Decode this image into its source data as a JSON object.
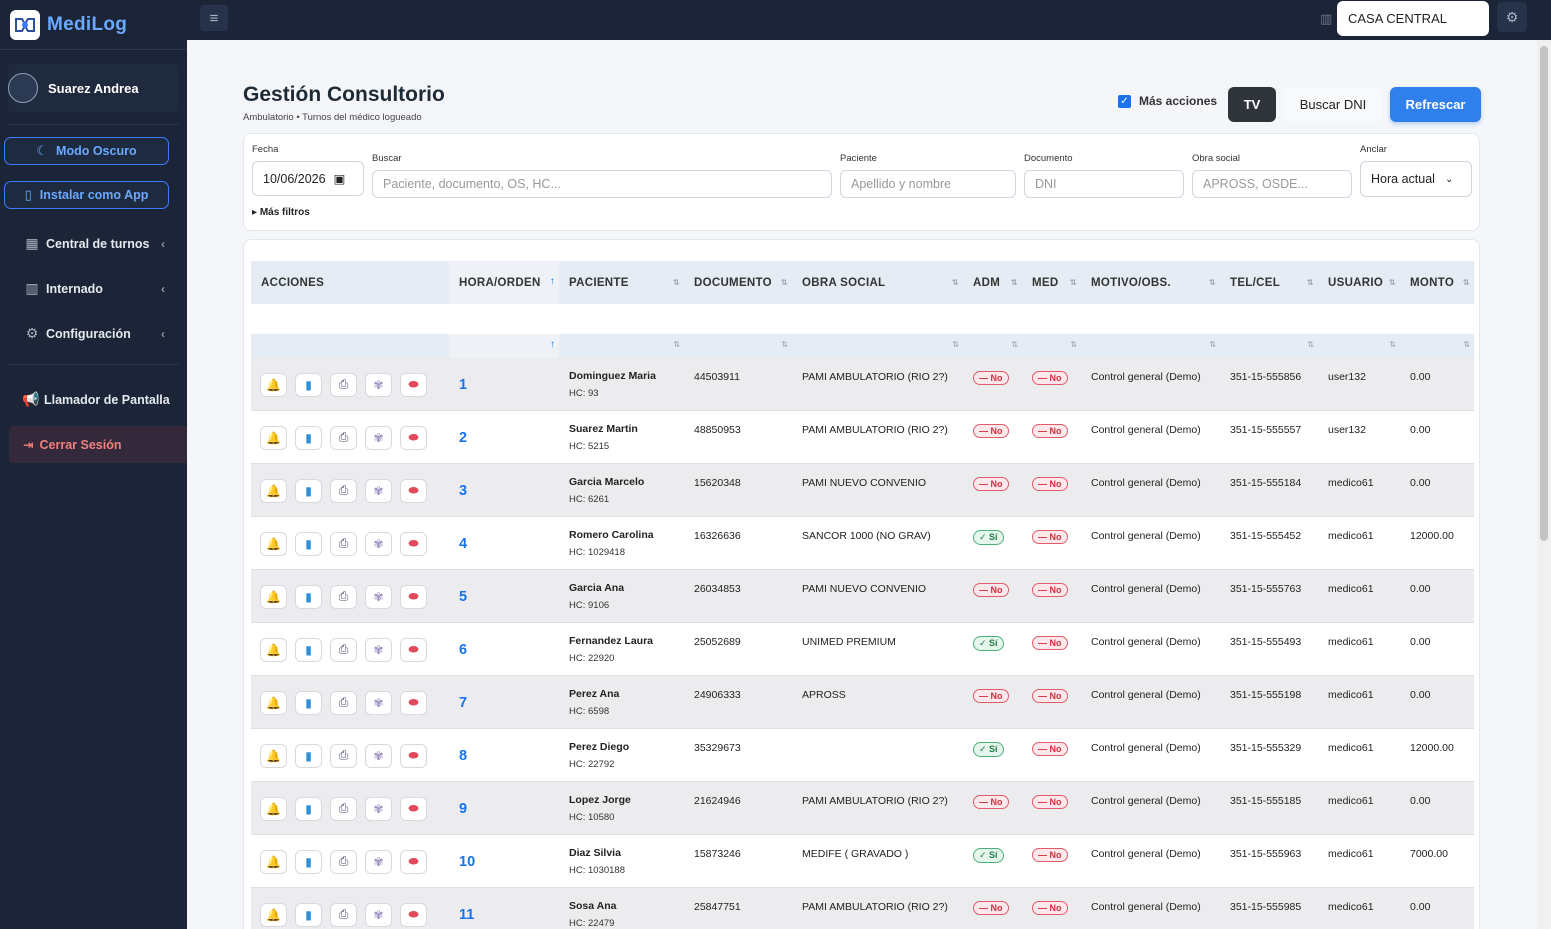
{
  "brand": {
    "name": "MediLog"
  },
  "user": {
    "name": "Suarez Andrea"
  },
  "sidebar": {
    "dark_mode_label": "Modo Oscuro",
    "install_label": "Instalar como App",
    "items": [
      {
        "label": "Central de turnos",
        "icon": "calendar-icon"
      },
      {
        "label": "Internado",
        "icon": "hospital-icon"
      },
      {
        "label": "Configuración",
        "icon": "gear-icon"
      }
    ],
    "caller_label": "Llamador de Pantalla",
    "logout_label": "Cerrar Sesión"
  },
  "topbar": {
    "branch": "CASA CENTRAL"
  },
  "page": {
    "title": "Gestión Consultorio",
    "subtitle": "Ambulatorio • Turnos del médico logueado",
    "more_actions": "Más acciones",
    "tv": "TV",
    "buscar_dni": "Buscar DNI",
    "refrescar": "Refrescar"
  },
  "filters": {
    "fecha_label": "Fecha",
    "fecha_value": "10/06/2026",
    "buscar_label": "Buscar",
    "buscar_placeholder": "Paciente, documento, OS, HC...",
    "paciente_label": "Paciente",
    "paciente_placeholder": "Apellido y nombre",
    "documento_label": "Documento",
    "documento_placeholder": "DNI",
    "obra_label": "Obra social",
    "obra_placeholder": "APROSS, OSDE...",
    "anclar_label": "Anclar",
    "anclar_value": "Hora actual",
    "mas_filtros": "Más filtros"
  },
  "table": {
    "columns": [
      "ACCIONES",
      "HORA/ORDEN",
      "PACIENTE",
      "DOCUMENTO",
      "OBRA SOCIAL",
      "ADM",
      "MED",
      "MOTIVO/OBS.",
      "TEL/CEL",
      "USUARIO",
      "MONTO"
    ],
    "rows": [
      {
        "order": "1",
        "name": "Dominguez Maria",
        "hc": "HC: 93",
        "doc": "44503911",
        "os": "PAMI AMBULATORIO (RIO 2?)",
        "adm": "— No",
        "med": "— No",
        "motivo": "Control general (Demo)",
        "tel": "351-15-555856",
        "usuario": "user132",
        "monto": "0.00"
      },
      {
        "order": "2",
        "name": "Suarez Martin",
        "hc": "HC: 5215",
        "doc": "48850953",
        "os": "PAMI AMBULATORIO (RIO 2?)",
        "adm": "— No",
        "med": "— No",
        "motivo": "Control general (Demo)",
        "tel": "351-15-555557",
        "usuario": "user132",
        "monto": "0.00"
      },
      {
        "order": "3",
        "name": "Garcia Marcelo",
        "hc": "HC: 6261",
        "doc": "15620348",
        "os": "PAMI NUEVO CONVENIO",
        "adm": "— No",
        "med": "— No",
        "motivo": "Control general (Demo)",
        "tel": "351-15-555184",
        "usuario": "medico61",
        "monto": "0.00"
      },
      {
        "order": "4",
        "name": "Romero Carolina",
        "hc": "HC: 1029418",
        "doc": "16326636",
        "os": "SANCOR 1000 (NO GRAV)",
        "adm": "✓ Sí",
        "med": "— No",
        "motivo": "Control general (Demo)",
        "tel": "351-15-555452",
        "usuario": "medico61",
        "monto": "12000.00"
      },
      {
        "order": "5",
        "name": "Garcia Ana",
        "hc": "HC: 9106",
        "doc": "26034853",
        "os": "PAMI NUEVO CONVENIO",
        "adm": "— No",
        "med": "— No",
        "motivo": "Control general (Demo)",
        "tel": "351-15-555763",
        "usuario": "medico61",
        "monto": "0.00"
      },
      {
        "order": "6",
        "name": "Fernandez Laura",
        "hc": "HC: 22920",
        "doc": "25052689",
        "os": "UNIMED PREMIUM",
        "adm": "✓ Sí",
        "med": "— No",
        "motivo": "Control general (Demo)",
        "tel": "351-15-555493",
        "usuario": "medico61",
        "monto": "0.00"
      },
      {
        "order": "7",
        "name": "Perez Ana",
        "hc": "HC: 6598",
        "doc": "24906333",
        "os": "APROSS",
        "adm": "— No",
        "med": "— No",
        "motivo": "Control general (Demo)",
        "tel": "351-15-555198",
        "usuario": "medico61",
        "monto": "0.00"
      },
      {
        "order": "8",
        "name": "Perez Diego",
        "hc": "HC: 22792",
        "doc": "35329673",
        "os": "",
        "adm": "✓ Sí",
        "med": "— No",
        "motivo": "Control general (Demo)",
        "tel": "351-15-555329",
        "usuario": "medico61",
        "monto": "12000.00"
      },
      {
        "order": "9",
        "name": "Lopez Jorge",
        "hc": "HC: 10580",
        "doc": "21624946",
        "os": "PAMI AMBULATORIO (RIO 2?)",
        "adm": "— No",
        "med": "— No",
        "motivo": "Control general (Demo)",
        "tel": "351-15-555185",
        "usuario": "medico61",
        "monto": "0.00"
      },
      {
        "order": "10",
        "name": "Diaz Silvia",
        "hc": "HC: 1030188",
        "doc": "15873246",
        "os": "MEDIFE ( GRAVADO )",
        "adm": "✓ Sí",
        "med": "— No",
        "motivo": "Control general (Demo)",
        "tel": "351-15-555963",
        "usuario": "medico61",
        "monto": "7000.00"
      },
      {
        "order": "11",
        "name": "Sosa Ana",
        "hc": "HC: 22479",
        "doc": "25847751",
        "os": "PAMI AMBULATORIO (RIO 2?)",
        "adm": "— No",
        "med": "— No",
        "motivo": "Control general (Demo)",
        "tel": "351-15-555985",
        "usuario": "medico61",
        "monto": "0.00"
      }
    ]
  },
  "colors": {
    "accent": "#2f80ed",
    "sidebar": "#1b2537",
    "danger": "#d0303f",
    "success": "#1e7c48"
  }
}
